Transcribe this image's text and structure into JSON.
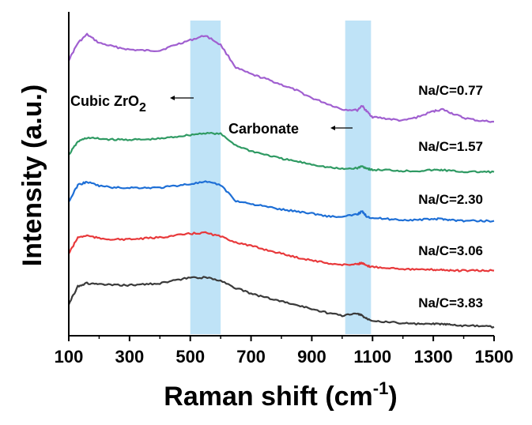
{
  "chart_data": {
    "type": "line",
    "xlabel_main": "Raman shift (cm",
    "xlabel_sup": "-1",
    "xlabel_tail": ")",
    "ylabel": "Intensity (a.u.)",
    "xlim": [
      100,
      1500
    ],
    "x_ticks": [
      "100",
      "300",
      "500",
      "700",
      "900",
      "1100",
      "1300",
      "1500"
    ],
    "y_ticks_shown": false,
    "highlight_bands": [
      {
        "from": 500,
        "to": 600,
        "color": "#bfe3f7"
      },
      {
        "from": 1010,
        "to": 1095,
        "color": "#bfe3f7"
      }
    ],
    "annotations": [
      {
        "text_main": "Cubic ZrO",
        "text_sub": "2",
        "points_to_x": 530
      },
      {
        "text": "Carbonate",
        "points_to_x": 1055
      }
    ],
    "x": [
      100,
      130,
      160,
      200,
      250,
      300,
      350,
      400,
      450,
      500,
      550,
      600,
      650,
      700,
      750,
      800,
      850,
      900,
      950,
      1000,
      1050,
      1065,
      1080,
      1100,
      1150,
      1200,
      1250,
      1300,
      1330,
      1360,
      1400,
      1450,
      1500
    ],
    "series": [
      {
        "name": "Na/C=0.77",
        "color": "#a05fd0",
        "values": [
          0.7,
          0.88,
          0.97,
          0.88,
          0.84,
          0.81,
          0.8,
          0.8,
          0.86,
          0.91,
          0.96,
          0.86,
          0.62,
          0.55,
          0.5,
          0.44,
          0.38,
          0.3,
          0.24,
          0.18,
          0.17,
          0.22,
          0.16,
          0.1,
          0.08,
          0.06,
          0.1,
          0.16,
          0.18,
          0.14,
          0.09,
          0.06,
          0.05
        ]
      },
      {
        "name": "Na/C=1.57",
        "color": "#2f9a63",
        "values": [
          0.2,
          0.34,
          0.38,
          0.37,
          0.36,
          0.36,
          0.36,
          0.37,
          0.39,
          0.41,
          0.43,
          0.42,
          0.3,
          0.24,
          0.2,
          0.16,
          0.13,
          0.1,
          0.07,
          0.05,
          0.06,
          0.08,
          0.06,
          0.04,
          0.04,
          0.03,
          0.03,
          0.04,
          0.04,
          0.03,
          0.02,
          0.02,
          0.02
        ]
      },
      {
        "name": "Na/C=2.30",
        "color": "#1e6fd6",
        "values": [
          0.22,
          0.4,
          0.43,
          0.39,
          0.37,
          0.37,
          0.37,
          0.37,
          0.39,
          0.41,
          0.43,
          0.4,
          0.23,
          0.2,
          0.17,
          0.14,
          0.12,
          0.1,
          0.07,
          0.06,
          0.09,
          0.12,
          0.07,
          0.05,
          0.04,
          0.03,
          0.03,
          0.04,
          0.04,
          0.03,
          0.02,
          0.02,
          0.02
        ]
      },
      {
        "name": "Na/C=3.06",
        "color": "#e8393b",
        "values": [
          0.2,
          0.37,
          0.39,
          0.36,
          0.35,
          0.35,
          0.36,
          0.37,
          0.39,
          0.41,
          0.42,
          0.38,
          0.32,
          0.28,
          0.24,
          0.2,
          0.16,
          0.13,
          0.1,
          0.08,
          0.09,
          0.1,
          0.07,
          0.06,
          0.05,
          0.04,
          0.03,
          0.03,
          0.03,
          0.02,
          0.02,
          0.02,
          0.02
        ]
      },
      {
        "name": "Na/C=3.83",
        "color": "#3a3a3a",
        "values": [
          0.25,
          0.44,
          0.47,
          0.46,
          0.45,
          0.45,
          0.46,
          0.47,
          0.5,
          0.53,
          0.53,
          0.5,
          0.42,
          0.36,
          0.32,
          0.28,
          0.24,
          0.2,
          0.16,
          0.13,
          0.15,
          0.13,
          0.1,
          0.08,
          0.06,
          0.05,
          0.04,
          0.04,
          0.04,
          0.03,
          0.02,
          0.02,
          0.01
        ]
      }
    ]
  }
}
